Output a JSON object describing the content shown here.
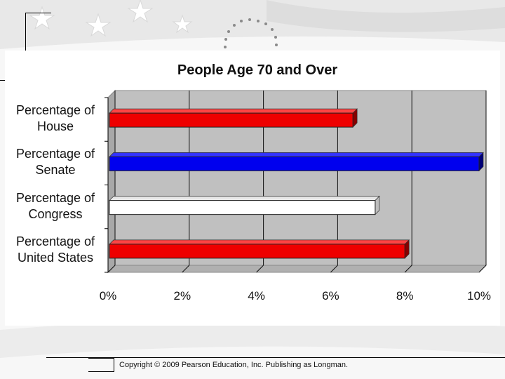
{
  "copyright": "Copyright © 2009 Pearson Education, Inc. Publishing as Longman.",
  "colors": {
    "plot_bg": "#c0c0c0",
    "red": "#ee0000",
    "blue": "#0000ee",
    "white": "#ffffff",
    "grid": "#111111"
  },
  "chart_data": {
    "type": "bar",
    "orientation": "horizontal",
    "title": "People Age 70 and Over",
    "categories": [
      "Percentage of\nHouse",
      "Percentage of\nSenate",
      "Percentage of\nCongress",
      "Percentage of\nUnited States"
    ],
    "values": [
      6.6,
      10.0,
      7.2,
      8.0
    ],
    "bar_colors": [
      "#ee0000",
      "#0000ee",
      "#ffffff",
      "#ee0000"
    ],
    "xlim": [
      0,
      10
    ],
    "ticks": [
      0,
      2,
      4,
      6,
      8,
      10
    ],
    "tick_labels": [
      "0%",
      "2%",
      "4%",
      "6%",
      "8%",
      "10%"
    ],
    "xlabel": "",
    "ylabel": "",
    "grid": true
  }
}
